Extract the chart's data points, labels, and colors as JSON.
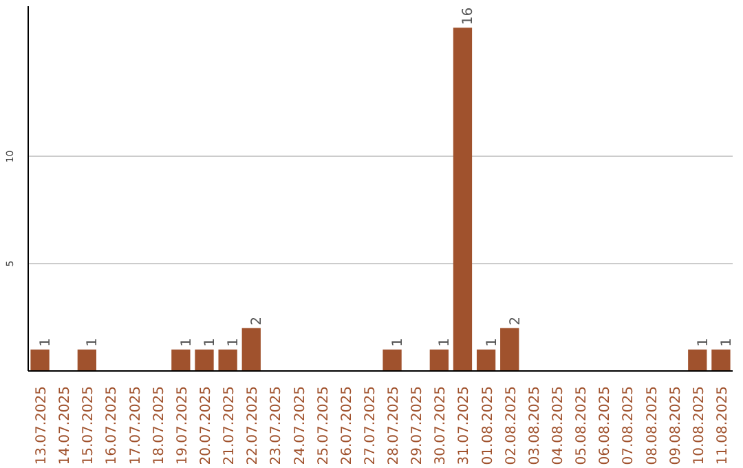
{
  "chart_data": {
    "type": "bar",
    "categories": [
      "13.07.2025",
      "14.07.2025",
      "15.07.2025",
      "16.07.2025",
      "17.07.2025",
      "18.07.2025",
      "19.07.2025",
      "20.07.2025",
      "21.07.2025",
      "22.07.2025",
      "23.07.2025",
      "24.07.2025",
      "25.07.2025",
      "26.07.2025",
      "27.07.2025",
      "28.07.2025",
      "29.07.2025",
      "30.07.2025",
      "31.07.2025",
      "01.08.2025",
      "02.08.2025",
      "03.08.2025",
      "04.08.2025",
      "05.08.2025",
      "06.08.2025",
      "07.08.2025",
      "08.08.2025",
      "09.08.2025",
      "10.08.2025",
      "11.08.2025"
    ],
    "values": [
      1,
      0,
      1,
      0,
      0,
      0,
      1,
      1,
      1,
      2,
      0,
      0,
      0,
      0,
      0,
      1,
      0,
      1,
      16,
      1,
      2,
      0,
      0,
      0,
      0,
      0,
      0,
      0,
      1,
      1
    ],
    "value_labels": [
      "1",
      null,
      "1",
      null,
      null,
      null,
      "1",
      "1",
      "1",
      "2",
      null,
      null,
      null,
      null,
      null,
      "1",
      null,
      "1",
      "16",
      "1",
      "2",
      null,
      null,
      null,
      null,
      null,
      null,
      null,
      "1",
      "1"
    ],
    "color": "#a0522d",
    "ylim": [
      0,
      17
    ],
    "yticks": [
      5,
      10
    ],
    "grid": "y"
  }
}
